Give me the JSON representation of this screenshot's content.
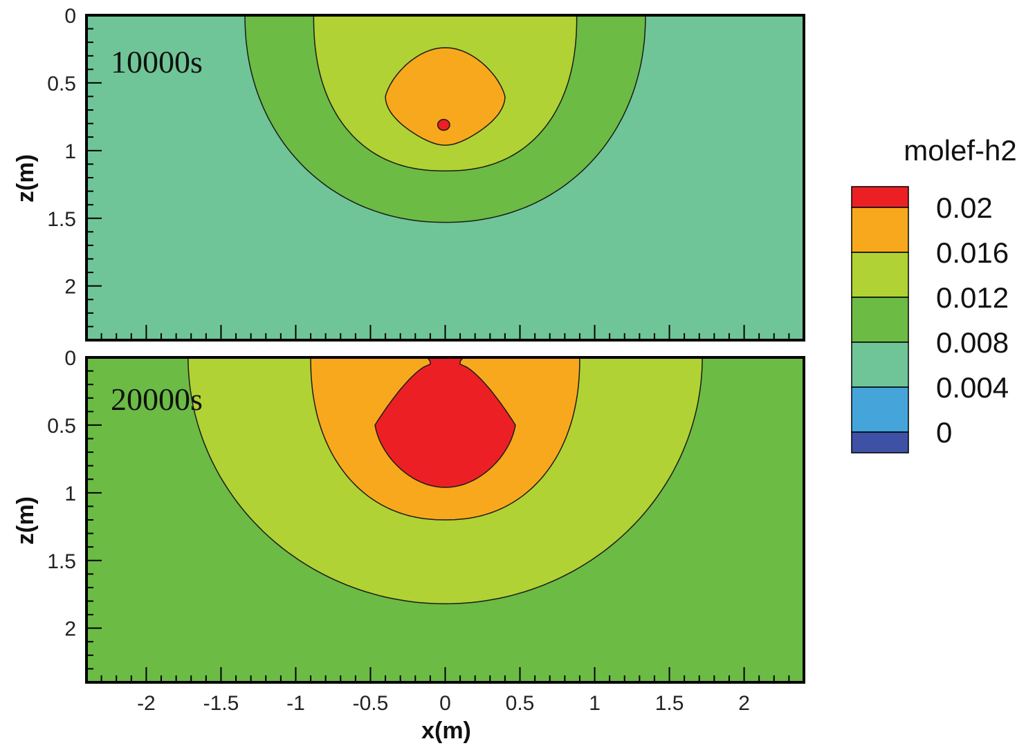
{
  "chart_data": {
    "type": "contour",
    "variable": "molef-h2",
    "xlabel": "x(m)",
    "ylabel": "z(m)",
    "xlim": [
      -2.4,
      2.4
    ],
    "ylim": [
      0,
      2.4
    ],
    "xticks": [
      -2,
      -1.5,
      -1,
      -0.5,
      0,
      0.5,
      1,
      1.5,
      2
    ],
    "xtick_labels": [
      "-2",
      "-1.5",
      "-1",
      "-0.5",
      "0",
      "0.5",
      "1",
      "1.5",
      "2"
    ],
    "yticks": [
      0,
      0.5,
      1,
      1.5,
      2
    ],
    "ytick_labels": [
      "0",
      "0.5",
      "1",
      "1.5",
      "2"
    ],
    "legend": {
      "title": "molef-h2",
      "levels": [
        0,
        0.004,
        0.008,
        0.012,
        0.016,
        0.02
      ],
      "level_labels": [
        "0",
        "0.004",
        "0.008",
        "0.012",
        "0.016",
        "0.02"
      ],
      "colors": [
        "#3f51a5",
        "#45a5db",
        "#6fc597",
        "#6bbb45",
        "#b0d234",
        "#f8a81c",
        "#ec2024"
      ]
    },
    "panels": [
      {
        "label": "10000s",
        "background_level_index": 2,
        "regions": [
          {
            "level_index": 3,
            "half_width": 1.34,
            "depth": 1.53,
            "cx": 0,
            "cz": 0,
            "exp": 2.1
          },
          {
            "level_index": 4,
            "half_width": 0.88,
            "depth": 1.15,
            "cx": 0,
            "cz": 0,
            "exp": 2.3
          },
          {
            "level_index": 5,
            "shape": "drop",
            "cx": 0,
            "cz": 0.6,
            "half_width": 0.4,
            "top": 0.24,
            "bottom": 0.96
          },
          {
            "level_index": 6,
            "shape": "ellipse",
            "cx": -0.01,
            "cz": 0.81,
            "rx": 0.04,
            "rz": 0.04
          }
        ]
      },
      {
        "label": "20000s",
        "background_level_index": 3,
        "regions": [
          {
            "level_index": 4,
            "half_width": 1.72,
            "depth": 1.82,
            "cx": 0,
            "cz": 0,
            "exp": 2.0
          },
          {
            "level_index": 5,
            "half_width": 0.9,
            "depth": 1.2,
            "cx": 0,
            "cz": 0,
            "exp": 2.2
          },
          {
            "level_index": 6,
            "shape": "bell",
            "cx": 0,
            "half_width": 0.47,
            "neck": 0.1,
            "neck_depth": 0.05,
            "shoulder_depth": 0.5,
            "bottom": 0.96
          }
        ]
      }
    ]
  }
}
